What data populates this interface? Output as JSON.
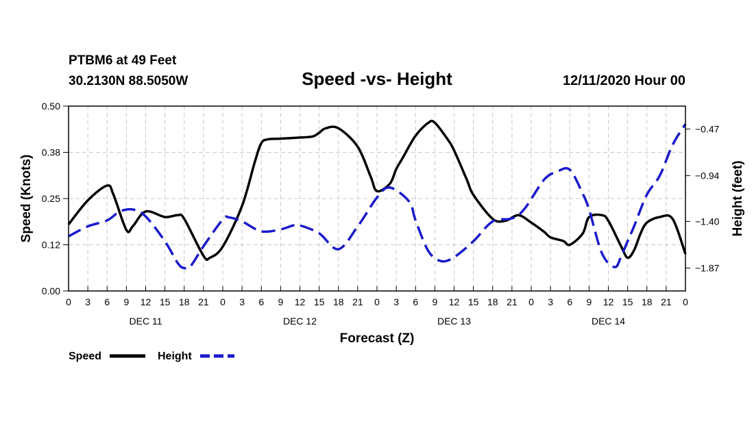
{
  "header": {
    "station": "PTBM6 at 49 Feet",
    "coords": "30.2130N 88.5050W",
    "title": "Speed -vs- Height",
    "run": "12/11/2020 Hour 00"
  },
  "colors": {
    "speed": "#000000",
    "height": "#1a1acc",
    "grid": "#c8c8c8"
  },
  "chart_data": {
    "type": "line",
    "title": "Speed -vs- Height",
    "xlabel": "Forecast (Z)",
    "ylabel": "Speed (Knots)",
    "y2label": "Height (feet)",
    "x_unit": "forecast hour from 12/11/2020 00Z",
    "xlim": [
      0,
      96
    ],
    "ylim": [
      0,
      0.5
    ],
    "y2lim": [
      -2.1,
      -0.24
    ],
    "grid": true,
    "x_ticks": [
      0,
      3,
      6,
      9,
      12,
      15,
      18,
      21,
      24,
      27,
      30,
      33,
      36,
      39,
      42,
      45,
      48,
      51,
      54,
      57,
      60,
      63,
      66,
      69,
      72,
      75,
      78,
      81,
      84,
      87,
      90,
      93,
      96
    ],
    "x_tick_labels": [
      "0",
      "3",
      "6",
      "9",
      "12",
      "15",
      "18",
      "21",
      "0",
      "3",
      "6",
      "9",
      "12",
      "15",
      "18",
      "21",
      "0",
      "3",
      "6",
      "9",
      "12",
      "15",
      "18",
      "21",
      "0",
      "3",
      "6",
      "9",
      "12",
      "15",
      "18",
      "21",
      "0"
    ],
    "day_labels": [
      {
        "hour": 12,
        "label": "DEC 11"
      },
      {
        "hour": 36,
        "label": "DEC 12"
      },
      {
        "hour": 60,
        "label": "DEC 13"
      },
      {
        "hour": 84,
        "label": "DEC 14"
      }
    ],
    "y_ticks": [
      0.0,
      0.125,
      0.25,
      0.375,
      0.5
    ],
    "y_tick_labels": [
      "0.00",
      "0.12",
      "0.25",
      "0.38",
      "0.50"
    ],
    "y2_ticks": [
      -1.87,
      -1.4,
      -0.94,
      -0.47
    ],
    "y2_tick_labels": [
      "−1.87",
      "−1.40",
      "−0.94",
      "−0.47"
    ],
    "legend_position": "bottom-left",
    "series": [
      {
        "name": "Speed",
        "axis": "left",
        "style": "solid",
        "x": [
          0,
          3,
          6,
          7,
          9,
          10,
          12,
          15,
          17,
          18,
          21,
          22,
          24,
          27,
          29,
          30,
          31,
          33,
          36,
          38,
          39,
          40,
          42,
          45,
          47,
          48,
          50,
          51,
          52,
          54,
          56,
          57,
          59,
          60,
          62,
          63,
          66,
          68,
          70,
          72,
          74,
          75,
          77,
          78,
          80,
          81,
          83,
          84,
          86,
          87,
          88,
          89,
          90,
          92,
          94,
          96
        ],
        "values": [
          0.18,
          0.245,
          0.285,
          0.26,
          0.165,
          0.175,
          0.215,
          0.2,
          0.205,
          0.195,
          0.095,
          0.09,
          0.12,
          0.23,
          0.35,
          0.4,
          0.41,
          0.412,
          0.415,
          0.418,
          0.428,
          0.44,
          0.44,
          0.39,
          0.31,
          0.27,
          0.29,
          0.33,
          0.36,
          0.42,
          0.455,
          0.455,
          0.41,
          0.38,
          0.3,
          0.26,
          0.195,
          0.19,
          0.205,
          0.185,
          0.16,
          0.145,
          0.135,
          0.125,
          0.155,
          0.2,
          0.205,
          0.19,
          0.12,
          0.09,
          0.11,
          0.155,
          0.185,
          0.2,
          0.195,
          0.1
        ]
      },
      {
        "name": "Height",
        "axis": "right",
        "style": "dashed",
        "x": [
          0,
          3,
          6,
          8,
          10,
          12,
          15,
          17,
          18,
          19,
          21,
          24,
          25,
          27,
          30,
          33,
          35,
          36,
          39,
          42,
          45,
          48,
          50,
          53,
          54,
          56,
          58,
          60,
          63,
          66,
          69,
          71,
          74,
          76,
          78,
          80,
          81,
          83,
          85,
          86,
          87,
          88,
          90,
          92,
          94,
          96
        ],
        "values": [
          -1.55,
          -1.45,
          -1.39,
          -1.3,
          -1.28,
          -1.35,
          -1.6,
          -1.82,
          -1.87,
          -1.85,
          -1.65,
          -1.38,
          -1.36,
          -1.4,
          -1.5,
          -1.48,
          -1.44,
          -1.44,
          -1.52,
          -1.68,
          -1.45,
          -1.16,
          -1.06,
          -1.2,
          -1.39,
          -1.7,
          -1.8,
          -1.76,
          -1.6,
          -1.4,
          -1.37,
          -1.27,
          -0.98,
          -0.9,
          -0.88,
          -1.12,
          -1.28,
          -1.72,
          -1.86,
          -1.75,
          -1.6,
          -1.45,
          -1.13,
          -0.94,
          -0.63,
          -0.42
        ]
      }
    ],
    "legend": [
      {
        "label": "Speed",
        "style": "solid"
      },
      {
        "label": "Height",
        "style": "dashed"
      }
    ]
  }
}
